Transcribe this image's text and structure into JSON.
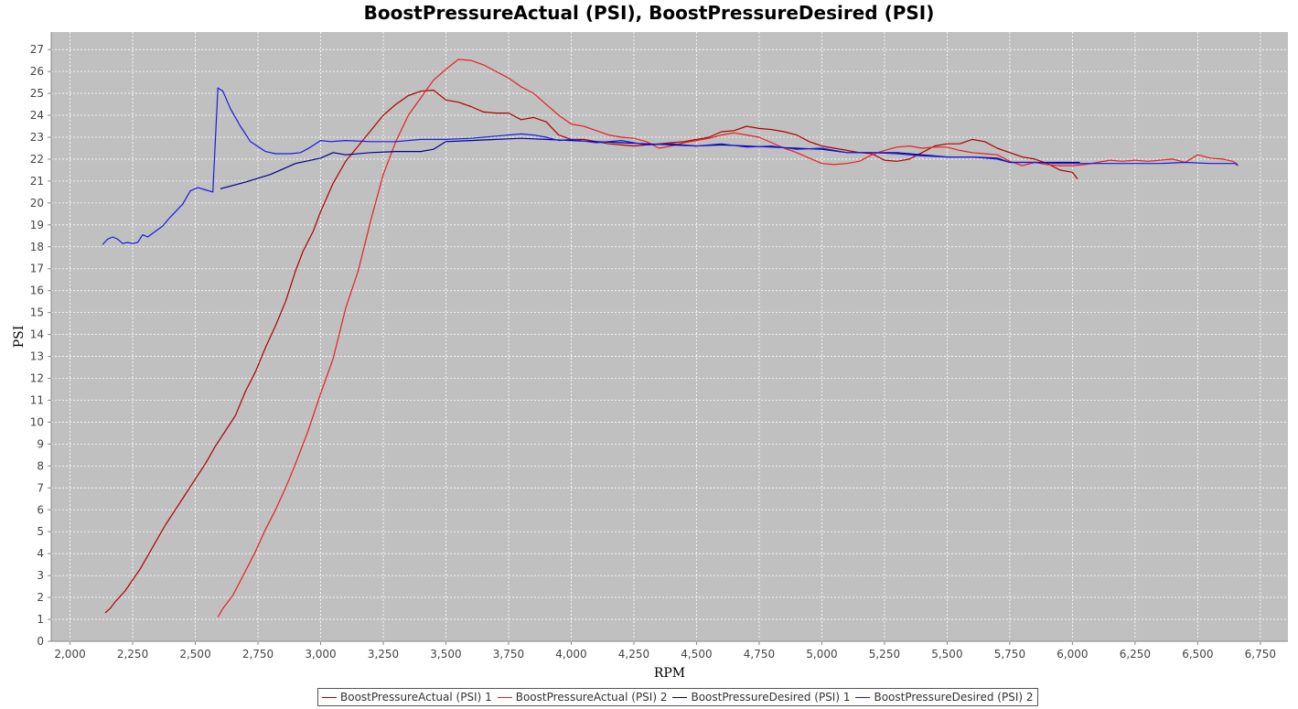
{
  "chart_data": {
    "type": "line",
    "title": "BoostPressureActual (PSI), BoostPressureDesired (PSI)",
    "xlabel": "RPM",
    "ylabel": "PSI",
    "xlim": [
      1925,
      6860
    ],
    "ylim": [
      0,
      27.8
    ],
    "grid": true,
    "legend_position": "bottom",
    "x_ticks": [
      2000,
      2250,
      2500,
      2750,
      3000,
      3250,
      3500,
      3750,
      4000,
      4250,
      4500,
      4750,
      5000,
      5250,
      5500,
      5750,
      6000,
      6250,
      6500,
      6750
    ],
    "x_tick_labels": [
      "2,000",
      "2,250",
      "2,500",
      "2,750",
      "3,000",
      "3,250",
      "3,500",
      "3,750",
      "4,000",
      "4,250",
      "4,500",
      "4,750",
      "5,000",
      "5,250",
      "5,500",
      "5,750",
      "6,000",
      "6,250",
      "6,500",
      "6,750"
    ],
    "y_ticks": [
      0,
      1,
      2,
      3,
      4,
      5,
      6,
      7,
      8,
      9,
      10,
      11,
      12,
      13,
      14,
      15,
      16,
      17,
      18,
      19,
      20,
      21,
      22,
      23,
      24,
      25,
      26,
      27
    ],
    "y_tick_labels": [
      "0",
      "1",
      "2",
      "3",
      "4",
      "5",
      "6",
      "7",
      "8",
      "9",
      "10",
      "11",
      "12",
      "13",
      "14",
      "15",
      "16",
      "17",
      "18",
      "19",
      "20",
      "21",
      "22",
      "23",
      "24",
      "25",
      "26",
      "27"
    ],
    "series": [
      {
        "name": "BoostPressureActual (PSI) 1",
        "color": "#b00000",
        "points": [
          [
            2140,
            1.3
          ],
          [
            2160,
            1.5
          ],
          [
            2180,
            1.8
          ],
          [
            2220,
            2.3
          ],
          [
            2250,
            2.8
          ],
          [
            2280,
            3.3
          ],
          [
            2300,
            3.7
          ],
          [
            2340,
            4.5
          ],
          [
            2380,
            5.3
          ],
          [
            2420,
            6.0
          ],
          [
            2460,
            6.7
          ],
          [
            2500,
            7.4
          ],
          [
            2540,
            8.1
          ],
          [
            2580,
            8.9
          ],
          [
            2620,
            9.6
          ],
          [
            2660,
            10.3
          ],
          [
            2700,
            11.4
          ],
          [
            2740,
            12.3
          ],
          [
            2780,
            13.4
          ],
          [
            2820,
            14.4
          ],
          [
            2860,
            15.5
          ],
          [
            2900,
            16.9
          ],
          [
            2930,
            17.8
          ],
          [
            2970,
            18.7
          ],
          [
            3000,
            19.6
          ],
          [
            3050,
            20.9
          ],
          [
            3100,
            21.9
          ],
          [
            3150,
            22.6
          ],
          [
            3200,
            23.3
          ],
          [
            3250,
            24.0
          ],
          [
            3300,
            24.5
          ],
          [
            3350,
            24.9
          ],
          [
            3400,
            25.1
          ],
          [
            3450,
            25.15
          ],
          [
            3500,
            24.7
          ],
          [
            3550,
            24.6
          ],
          [
            3600,
            24.4
          ],
          [
            3650,
            24.15
          ],
          [
            3700,
            24.1
          ],
          [
            3750,
            24.1
          ],
          [
            3800,
            23.8
          ],
          [
            3850,
            23.9
          ],
          [
            3900,
            23.7
          ],
          [
            3950,
            23.1
          ],
          [
            4000,
            22.9
          ],
          [
            4050,
            22.9
          ],
          [
            4100,
            22.8
          ],
          [
            4150,
            22.7
          ],
          [
            4200,
            22.65
          ],
          [
            4250,
            22.6
          ],
          [
            4300,
            22.65
          ],
          [
            4350,
            22.7
          ],
          [
            4400,
            22.75
          ],
          [
            4450,
            22.8
          ],
          [
            4500,
            22.9
          ],
          [
            4550,
            23.0
          ],
          [
            4600,
            23.25
          ],
          [
            4650,
            23.3
          ],
          [
            4700,
            23.5
          ],
          [
            4750,
            23.4
          ],
          [
            4800,
            23.35
          ],
          [
            4850,
            23.25
          ],
          [
            4900,
            23.1
          ],
          [
            4950,
            22.8
          ],
          [
            5000,
            22.6
          ],
          [
            5050,
            22.5
          ],
          [
            5100,
            22.4
          ],
          [
            5150,
            22.3
          ],
          [
            5200,
            22.25
          ],
          [
            5250,
            21.95
          ],
          [
            5300,
            21.9
          ],
          [
            5350,
            22.0
          ],
          [
            5400,
            22.3
          ],
          [
            5450,
            22.6
          ],
          [
            5500,
            22.7
          ],
          [
            5550,
            22.7
          ],
          [
            5600,
            22.9
          ],
          [
            5650,
            22.8
          ],
          [
            5700,
            22.5
          ],
          [
            5750,
            22.3
          ],
          [
            5800,
            22.1
          ],
          [
            5850,
            22.0
          ],
          [
            5900,
            21.8
          ],
          [
            5950,
            21.5
          ],
          [
            6000,
            21.4
          ],
          [
            6020,
            21.1
          ]
        ]
      },
      {
        "name": "BoostPressureActual (PSI) 2",
        "color": "#e82020",
        "points": [
          [
            2590,
            1.1
          ],
          [
            2610,
            1.5
          ],
          [
            2650,
            2.1
          ],
          [
            2700,
            3.2
          ],
          [
            2740,
            4.1
          ],
          [
            2780,
            5.1
          ],
          [
            2820,
            6.0
          ],
          [
            2860,
            7.0
          ],
          [
            2900,
            8.1
          ],
          [
            2950,
            9.6
          ],
          [
            3000,
            11.3
          ],
          [
            3050,
            12.9
          ],
          [
            3100,
            15.2
          ],
          [
            3150,
            16.9
          ],
          [
            3200,
            19.2
          ],
          [
            3250,
            21.3
          ],
          [
            3300,
            22.8
          ],
          [
            3350,
            24.0
          ],
          [
            3400,
            24.8
          ],
          [
            3450,
            25.6
          ],
          [
            3500,
            26.1
          ],
          [
            3550,
            26.55
          ],
          [
            3600,
            26.5
          ],
          [
            3650,
            26.3
          ],
          [
            3700,
            26.0
          ],
          [
            3750,
            25.7
          ],
          [
            3800,
            25.3
          ],
          [
            3850,
            25.0
          ],
          [
            3900,
            24.5
          ],
          [
            3950,
            24.0
          ],
          [
            4000,
            23.6
          ],
          [
            4050,
            23.5
          ],
          [
            4100,
            23.3
          ],
          [
            4150,
            23.1
          ],
          [
            4200,
            23.0
          ],
          [
            4250,
            22.95
          ],
          [
            4300,
            22.8
          ],
          [
            4350,
            22.5
          ],
          [
            4400,
            22.6
          ],
          [
            4450,
            22.75
          ],
          [
            4500,
            22.85
          ],
          [
            4550,
            22.95
          ],
          [
            4600,
            23.1
          ],
          [
            4650,
            23.2
          ],
          [
            4700,
            23.1
          ],
          [
            4750,
            23.0
          ],
          [
            4800,
            22.75
          ],
          [
            4850,
            22.5
          ],
          [
            4900,
            22.3
          ],
          [
            4950,
            22.05
          ],
          [
            5000,
            21.8
          ],
          [
            5050,
            21.75
          ],
          [
            5100,
            21.8
          ],
          [
            5150,
            21.9
          ],
          [
            5200,
            22.2
          ],
          [
            5250,
            22.4
          ],
          [
            5300,
            22.55
          ],
          [
            5350,
            22.6
          ],
          [
            5400,
            22.5
          ],
          [
            5450,
            22.55
          ],
          [
            5500,
            22.55
          ],
          [
            5550,
            22.4
          ],
          [
            5600,
            22.3
          ],
          [
            5650,
            22.25
          ],
          [
            5700,
            22.2
          ],
          [
            5750,
            21.9
          ],
          [
            5800,
            21.7
          ],
          [
            5850,
            21.85
          ],
          [
            5900,
            21.75
          ],
          [
            5950,
            21.7
          ],
          [
            6000,
            21.7
          ],
          [
            6050,
            21.75
          ],
          [
            6100,
            21.85
          ],
          [
            6150,
            21.95
          ],
          [
            6200,
            21.9
          ],
          [
            6250,
            21.95
          ],
          [
            6300,
            21.9
          ],
          [
            6350,
            21.95
          ],
          [
            6400,
            22.0
          ],
          [
            6450,
            21.85
          ],
          [
            6500,
            22.2
          ],
          [
            6550,
            22.05
          ],
          [
            6600,
            22.0
          ],
          [
            6640,
            21.9
          ],
          [
            6660,
            21.75
          ]
        ]
      },
      {
        "name": "BoostPressureDesired (PSI) 1",
        "color": "#000090",
        "points": [
          [
            2600,
            20.65
          ],
          [
            2700,
            20.95
          ],
          [
            2800,
            21.3
          ],
          [
            2850,
            21.55
          ],
          [
            2900,
            21.8
          ],
          [
            3000,
            22.05
          ],
          [
            3050,
            22.3
          ],
          [
            3100,
            22.2
          ],
          [
            3200,
            22.3
          ],
          [
            3300,
            22.35
          ],
          [
            3400,
            22.35
          ],
          [
            3450,
            22.45
          ],
          [
            3500,
            22.8
          ],
          [
            3600,
            22.85
          ],
          [
            3700,
            22.9
          ],
          [
            3800,
            22.95
          ],
          [
            3900,
            22.9
          ],
          [
            4000,
            22.85
          ],
          [
            4100,
            22.8
          ],
          [
            4200,
            22.75
          ],
          [
            4300,
            22.7
          ],
          [
            4400,
            22.65
          ],
          [
            4500,
            22.6
          ],
          [
            4600,
            22.65
          ],
          [
            4700,
            22.6
          ],
          [
            4800,
            22.55
          ],
          [
            4900,
            22.5
          ],
          [
            5000,
            22.45
          ],
          [
            5100,
            22.3
          ],
          [
            5200,
            22.3
          ],
          [
            5300,
            22.3
          ],
          [
            5400,
            22.2
          ],
          [
            5500,
            22.1
          ],
          [
            5600,
            22.1
          ],
          [
            5700,
            22.05
          ],
          [
            5750,
            21.85
          ],
          [
            5800,
            21.85
          ],
          [
            5900,
            21.85
          ],
          [
            6000,
            21.85
          ],
          [
            6030,
            21.85
          ]
        ]
      },
      {
        "name": "BoostPressureDesired (PSI) 2",
        "color": "#1a1ae6",
        "points": [
          [
            2130,
            18.1
          ],
          [
            2150,
            18.35
          ],
          [
            2170,
            18.45
          ],
          [
            2190,
            18.35
          ],
          [
            2210,
            18.15
          ],
          [
            2230,
            18.2
          ],
          [
            2250,
            18.15
          ],
          [
            2270,
            18.2
          ],
          [
            2290,
            18.55
          ],
          [
            2310,
            18.45
          ],
          [
            2340,
            18.7
          ],
          [
            2370,
            18.95
          ],
          [
            2400,
            19.35
          ],
          [
            2450,
            19.95
          ],
          [
            2480,
            20.55
          ],
          [
            2510,
            20.7
          ],
          [
            2540,
            20.6
          ],
          [
            2570,
            20.5
          ],
          [
            2590,
            25.25
          ],
          [
            2610,
            25.1
          ],
          [
            2640,
            24.3
          ],
          [
            2680,
            23.5
          ],
          [
            2720,
            22.8
          ],
          [
            2780,
            22.35
          ],
          [
            2820,
            22.25
          ],
          [
            2880,
            22.25
          ],
          [
            2920,
            22.3
          ],
          [
            2960,
            22.55
          ],
          [
            3000,
            22.85
          ],
          [
            3040,
            22.8
          ],
          [
            3100,
            22.85
          ],
          [
            3200,
            22.8
          ],
          [
            3300,
            22.8
          ],
          [
            3400,
            22.9
          ],
          [
            3500,
            22.9
          ],
          [
            3600,
            22.95
          ],
          [
            3700,
            23.05
          ],
          [
            3800,
            23.15
          ],
          [
            3850,
            23.1
          ],
          [
            3900,
            23.0
          ],
          [
            3950,
            22.85
          ],
          [
            4000,
            22.9
          ],
          [
            4100,
            22.75
          ],
          [
            4200,
            22.85
          ],
          [
            4300,
            22.65
          ],
          [
            4400,
            22.7
          ],
          [
            4500,
            22.6
          ],
          [
            4600,
            22.7
          ],
          [
            4700,
            22.55
          ],
          [
            4800,
            22.6
          ],
          [
            4900,
            22.45
          ],
          [
            5000,
            22.5
          ],
          [
            5100,
            22.3
          ],
          [
            5200,
            22.3
          ],
          [
            5300,
            22.25
          ],
          [
            5400,
            22.15
          ],
          [
            5500,
            22.1
          ],
          [
            5600,
            22.1
          ],
          [
            5700,
            22.0
          ],
          [
            5750,
            21.85
          ],
          [
            5850,
            21.85
          ],
          [
            5950,
            21.8
          ],
          [
            6050,
            21.8
          ],
          [
            6150,
            21.8
          ],
          [
            6250,
            21.8
          ],
          [
            6350,
            21.8
          ],
          [
            6450,
            21.85
          ],
          [
            6550,
            21.8
          ],
          [
            6650,
            21.8
          ],
          [
            6660,
            21.7
          ]
        ]
      }
    ]
  }
}
